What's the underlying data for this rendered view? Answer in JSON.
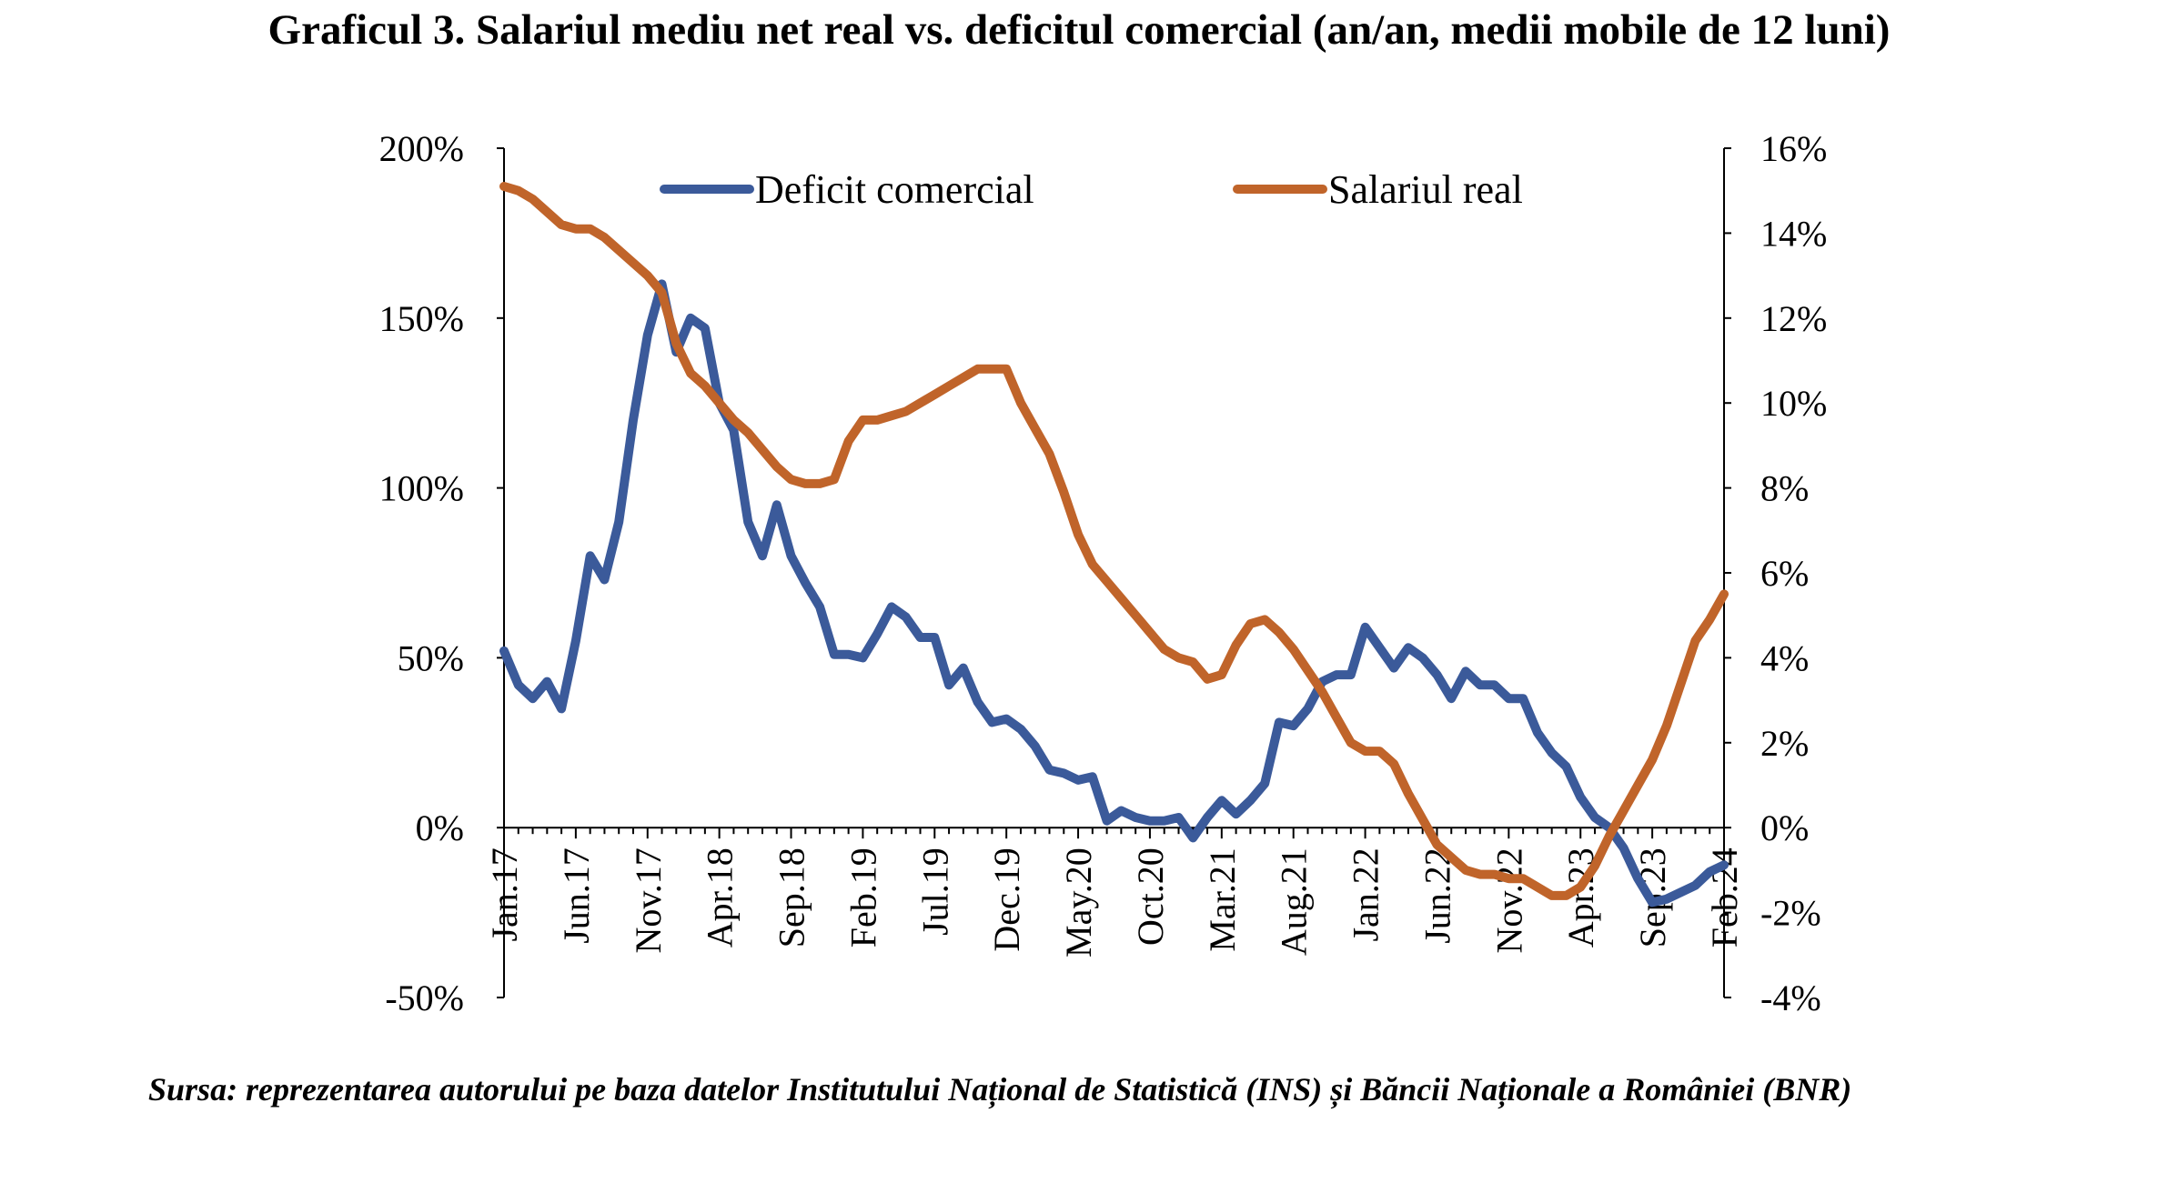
{
  "title": "Graficul 3. Salariul mediu net real vs. deficitul comercial (an/an, medii mobile de 12 luni)",
  "source_note": "Sursa: reprezentarea autorului pe baza datelor Institutului Național de Statistică (INS) și Băncii Naționale a României (BNR)",
  "colors": {
    "deficit": "#3b5a9a",
    "wage": "#c0642a",
    "axis": "#000000"
  },
  "chart_data": {
    "type": "line",
    "title": "Graficul 3. Salariul mediu net real vs. deficitul comercial (an/an, medii mobile de 12 luni)",
    "legend_position": "top",
    "grid": false,
    "x_tick_labels": [
      "Jan.17",
      "Jun.17",
      "Nov.17",
      "Apr.18",
      "Sep.18",
      "Feb.19",
      "Jul.19",
      "Dec.19",
      "May.20",
      "Oct.20",
      "Mar.21",
      "Aug.21",
      "Jan.22",
      "Jun.22",
      "Nov.22",
      "Apr.23",
      "Sep.23",
      "Feb.24"
    ],
    "y_left": {
      "min": -50,
      "max": 200,
      "ticks": [
        -50,
        0,
        50,
        100,
        150,
        200
      ],
      "tick_labels": [
        "-50%",
        "0%",
        "50%",
        "100%",
        "150%",
        "200%"
      ]
    },
    "y_right": {
      "min": -4,
      "max": 16,
      "ticks": [
        -4,
        -2,
        0,
        2,
        4,
        6,
        8,
        10,
        12,
        14,
        16
      ],
      "tick_labels": [
        "-4%",
        "-2%",
        "0%",
        "2%",
        "4%",
        "6%",
        "8%",
        "10%",
        "12%",
        "14%",
        "16%"
      ]
    },
    "x": [
      "2017-01",
      "2017-02",
      "2017-03",
      "2017-04",
      "2017-05",
      "2017-06",
      "2017-07",
      "2017-08",
      "2017-09",
      "2017-10",
      "2017-11",
      "2017-12",
      "2018-01",
      "2018-02",
      "2018-03",
      "2018-04",
      "2018-05",
      "2018-06",
      "2018-07",
      "2018-08",
      "2018-09",
      "2018-10",
      "2018-11",
      "2018-12",
      "2019-01",
      "2019-02",
      "2019-03",
      "2019-04",
      "2019-05",
      "2019-06",
      "2019-07",
      "2019-08",
      "2019-09",
      "2019-10",
      "2019-11",
      "2019-12",
      "2020-01",
      "2020-02",
      "2020-03",
      "2020-04",
      "2020-05",
      "2020-06",
      "2020-07",
      "2020-08",
      "2020-09",
      "2020-10",
      "2020-11",
      "2020-12",
      "2021-01",
      "2021-02",
      "2021-03",
      "2021-04",
      "2021-05",
      "2021-06",
      "2021-07",
      "2021-08",
      "2021-09",
      "2021-10",
      "2021-11",
      "2021-12",
      "2022-01",
      "2022-02",
      "2022-03",
      "2022-04",
      "2022-05",
      "2022-06",
      "2022-07",
      "2022-08",
      "2022-09",
      "2022-10",
      "2022-11",
      "2022-12",
      "2023-01",
      "2023-02",
      "2023-03",
      "2023-04",
      "2023-05",
      "2023-06",
      "2023-07",
      "2023-08",
      "2023-09",
      "2023-10",
      "2023-11",
      "2023-12",
      "2024-01",
      "2024-02"
    ],
    "series": [
      {
        "name": "Deficit comercial",
        "axis": "left",
        "values": [
          52,
          42,
          38,
          43,
          35,
          55,
          80,
          73,
          90,
          120,
          145,
          160,
          140,
          150,
          147,
          125,
          117,
          90,
          80,
          95,
          80,
          72,
          65,
          51,
          51,
          50,
          57,
          65,
          62,
          56,
          56,
          42,
          47,
          37,
          31,
          32,
          29,
          24,
          17,
          16,
          14,
          15,
          2,
          5,
          3,
          2,
          2,
          3,
          -3,
          3,
          8,
          4,
          8,
          13,
          31,
          30,
          35,
          43,
          45,
          45,
          59,
          53,
          47,
          53,
          50,
          45,
          38,
          46,
          42,
          42,
          38,
          38,
          28,
          22,
          18,
          9,
          3,
          0,
          -6,
          -15,
          -22,
          -21,
          -19,
          -17,
          -13,
          -11
        ]
      },
      {
        "name": "Salariul real",
        "axis": "right",
        "values": [
          15.1,
          15.0,
          14.8,
          14.5,
          14.2,
          14.1,
          14.1,
          13.9,
          13.6,
          13.3,
          13.0,
          12.6,
          11.4,
          10.7,
          10.4,
          10.0,
          9.6,
          9.3,
          8.9,
          8.5,
          8.2,
          8.1,
          8.1,
          8.2,
          9.1,
          9.6,
          9.6,
          9.7,
          9.8,
          10.0,
          10.2,
          10.4,
          10.6,
          10.8,
          10.8,
          10.8,
          10.0,
          9.4,
          8.8,
          7.9,
          6.9,
          6.2,
          5.8,
          5.4,
          5.0,
          4.6,
          4.2,
          4.0,
          3.9,
          3.5,
          3.6,
          4.3,
          4.8,
          4.9,
          4.6,
          4.2,
          3.7,
          3.2,
          2.6,
          2.0,
          1.8,
          1.8,
          1.5,
          0.8,
          0.2,
          -0.4,
          -0.7,
          -1.0,
          -1.1,
          -1.1,
          -1.2,
          -1.2,
          -1.4,
          -1.6,
          -1.6,
          -1.4,
          -0.9,
          -0.2,
          0.4,
          1.0,
          1.6,
          2.4,
          3.4,
          4.4,
          4.9,
          5.5
        ]
      }
    ]
  }
}
